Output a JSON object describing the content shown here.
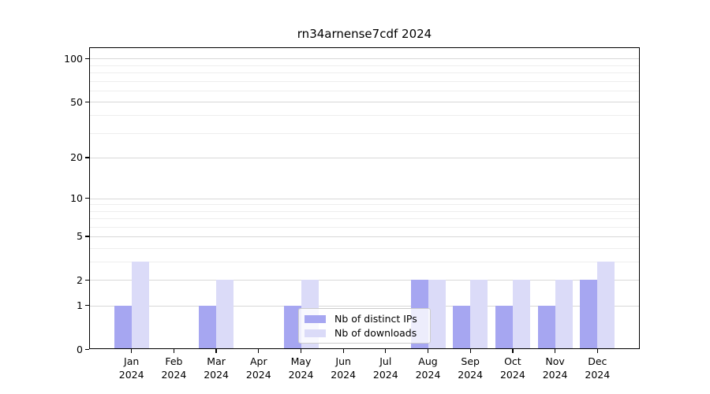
{
  "chart_data": {
    "type": "bar",
    "title": "rn34arnense7cdf 2024",
    "categories": [
      "Jan",
      "Feb",
      "Mar",
      "Apr",
      "May",
      "Jun",
      "Jul",
      "Aug",
      "Sep",
      "Oct",
      "Nov",
      "Dec"
    ],
    "x_tick_second_line": "2024",
    "series": [
      {
        "name": "Nb of distinct IPs",
        "color": "#a6a6f1",
        "values": [
          1,
          0,
          1,
          0,
          1,
          0,
          0,
          2,
          1,
          1,
          1,
          2
        ]
      },
      {
        "name": "Nb of downloads",
        "color": "#dbdbf8",
        "values": [
          3,
          0,
          2,
          0,
          2,
          0,
          0,
          2,
          2,
          2,
          2,
          3
        ]
      }
    ],
    "y_axis": {
      "scale": "log1p",
      "ticks": [
        0,
        1,
        2,
        5,
        10,
        20,
        50,
        100
      ],
      "minor_ticks": [
        3,
        4,
        6,
        7,
        8,
        9,
        30,
        40,
        60,
        70,
        80,
        90
      ],
      "ylim": [
        0,
        120
      ]
    },
    "legend_position": "lower center",
    "grid": "on"
  },
  "colors": {
    "grid_major": "#d8d8d8",
    "grid_minor": "#eeeeee",
    "axis": "#000000",
    "legend_border": "#cccccc"
  }
}
